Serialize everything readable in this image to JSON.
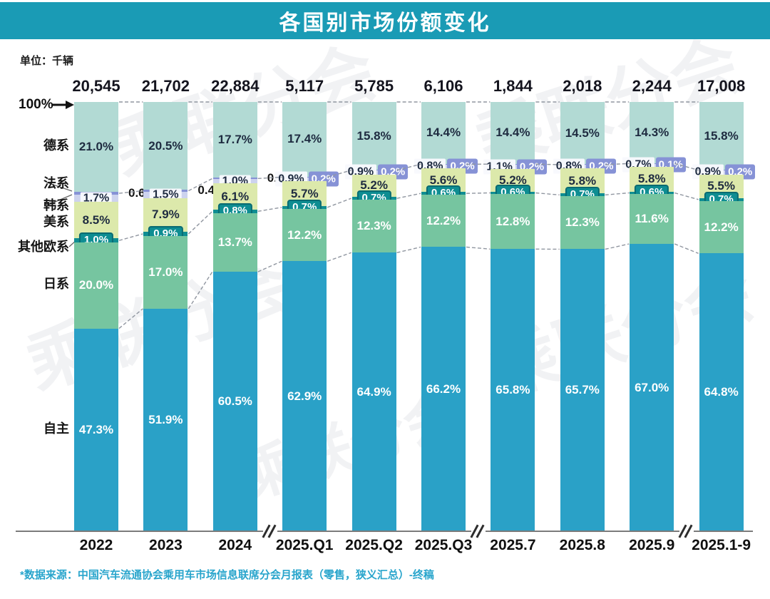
{
  "title": "各国别市场份额变化",
  "unit_label": "单位：千辆",
  "y_top_label": "100%",
  "source_note": "*数据来源：中国汽车流通协会乘用车市场信息联席分会月报表（零售，狭义汇总）-终稿",
  "watermark_text": "乘联分会",
  "colors": {
    "title_bar": "#1a9bb5",
    "german": "#b2dad4",
    "french": "#8692d6",
    "korean": "#cdd3ee",
    "american": "#dce9ab",
    "other_eu": "#0e8d92",
    "japanese": "#76c5a0",
    "domestic": "#2aa1c7",
    "source_text": "#29a5cc",
    "connector": "#9096a0"
  },
  "chart_data": {
    "type": "bar",
    "stacked": true,
    "unit": "千辆",
    "title": "各国别市场份额变化",
    "ylim": [
      0,
      100
    ],
    "grid": false,
    "legend_position": "left-labels",
    "categories": [
      "2022",
      "2023",
      "2024",
      "2025.Q1",
      "2025.Q2",
      "2025.Q3",
      "2025.7",
      "2025.8",
      "2025.9",
      "2025.1-9"
    ],
    "totals": [
      "20,545",
      "21,702",
      "22,884",
      "5,117",
      "5,785",
      "6,106",
      "1,844",
      "2,018",
      "2,244",
      "17,008"
    ],
    "axis_break_after_index": [
      2,
      5,
      8
    ],
    "series": [
      {
        "key": "german",
        "name": "德系",
        "color": "#b2dad4",
        "label_style": "inside-dark",
        "values": [
          21.0,
          20.5,
          17.7,
          17.4,
          15.8,
          14.4,
          14.4,
          14.5,
          14.3,
          15.8
        ]
      },
      {
        "key": "french",
        "name": "法系",
        "color": "#8692d6",
        "label_style": "french",
        "values": [
          0.6,
          0.4,
          0.3,
          0.2,
          0.2,
          0.2,
          0.2,
          0.2,
          0.1,
          0.2
        ]
      },
      {
        "key": "korean",
        "name": "韩系",
        "color": "#cdd3ee",
        "label_style": "korean-box",
        "values": [
          1.7,
          1.5,
          1.0,
          0.9,
          0.9,
          0.8,
          1.1,
          0.8,
          0.7,
          0.9
        ]
      },
      {
        "key": "american",
        "name": "美系",
        "color": "#dce9ab",
        "label_style": "inside-dark",
        "values": [
          8.5,
          7.9,
          6.1,
          5.7,
          5.2,
          5.6,
          5.2,
          5.8,
          5.8,
          5.5
        ]
      },
      {
        "key": "other_eu",
        "name": "其他欧系",
        "color": "#0e8d92",
        "label_style": "badge-teal",
        "values": [
          1.0,
          0.9,
          0.8,
          0.7,
          0.7,
          0.6,
          0.6,
          0.7,
          0.6,
          0.7
        ]
      },
      {
        "key": "japanese",
        "name": "日系",
        "color": "#76c5a0",
        "label_style": "inside-white",
        "values": [
          20.0,
          17.0,
          13.7,
          12.2,
          12.3,
          12.2,
          12.8,
          12.3,
          11.6,
          12.2
        ]
      },
      {
        "key": "domestic",
        "name": "自主",
        "color": "#2aa1c7",
        "label_style": "inside-white",
        "values": [
          47.3,
          51.9,
          60.5,
          62.9,
          64.9,
          66.2,
          65.8,
          65.7,
          67.0,
          64.8
        ]
      }
    ]
  }
}
